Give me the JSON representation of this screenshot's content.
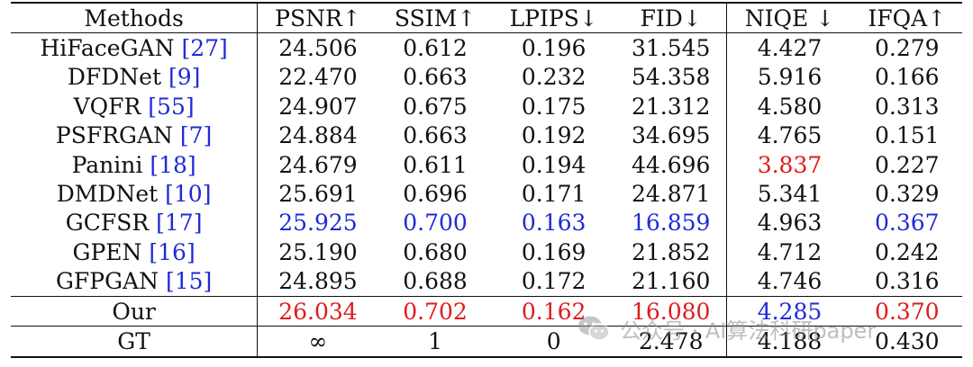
{
  "table": {
    "headers": [
      "Methods",
      "PSNR↑",
      "SSIM↑",
      "LPIPS↓",
      "FID↓",
      "NIQE ↓",
      "IFQA↑"
    ],
    "rows": [
      {
        "method": "HiFaceGAN",
        "cite": "[27]",
        "values": [
          "24.506",
          "0.612",
          "0.196",
          "31.545",
          "4.427",
          "0.279"
        ]
      },
      {
        "method": "DFDNet",
        "cite": "[9]",
        "values": [
          "22.470",
          "0.663",
          "0.232",
          "54.358",
          "5.916",
          "0.166"
        ]
      },
      {
        "method": "VQFR",
        "cite": "[55]",
        "values": [
          "24.907",
          "0.675",
          "0.175",
          "21.312",
          "4.580",
          "0.313"
        ]
      },
      {
        "method": "PSFRGAN",
        "cite": "[7]",
        "values": [
          "24.884",
          "0.663",
          "0.192",
          "34.695",
          "4.765",
          "0.151"
        ]
      },
      {
        "method": "Panini",
        "cite": "[18]",
        "values": [
          "24.679",
          "0.611",
          "0.194",
          "44.696",
          "3.837",
          "0.227"
        ]
      },
      {
        "method": "DMDNet",
        "cite": "[10]",
        "values": [
          "25.691",
          "0.696",
          "0.171",
          "24.871",
          "5.341",
          "0.329"
        ]
      },
      {
        "method": "GCFSR",
        "cite": "[17]",
        "values": [
          "25.925",
          "0.700",
          "0.163",
          "16.859",
          "4.963",
          "0.367"
        ]
      },
      {
        "method": "GPEN",
        "cite": "[16]",
        "values": [
          "25.190",
          "0.680",
          "0.169",
          "21.852",
          "4.712",
          "0.242"
        ]
      },
      {
        "method": "GFPGAN",
        "cite": "[15]",
        "values": [
          "24.895",
          "0.688",
          "0.172",
          "21.160",
          "4.746",
          "0.316"
        ]
      }
    ],
    "ours": {
      "method": "Our",
      "values": [
        "26.034",
        "0.702",
        "0.162",
        "16.080",
        "4.285",
        "0.370"
      ]
    },
    "gt": {
      "method": "GT",
      "values": [
        "∞",
        "1",
        "0",
        "2.478",
        "4.188",
        "0.430"
      ]
    }
  },
  "colors": {
    "best": "#e01b1b",
    "second": "#1f2ad6",
    "citation": "#1f2ad6"
  },
  "watermark": {
    "text": "公众号 · AI算法科研paper",
    "icon": "wechat-icon"
  }
}
